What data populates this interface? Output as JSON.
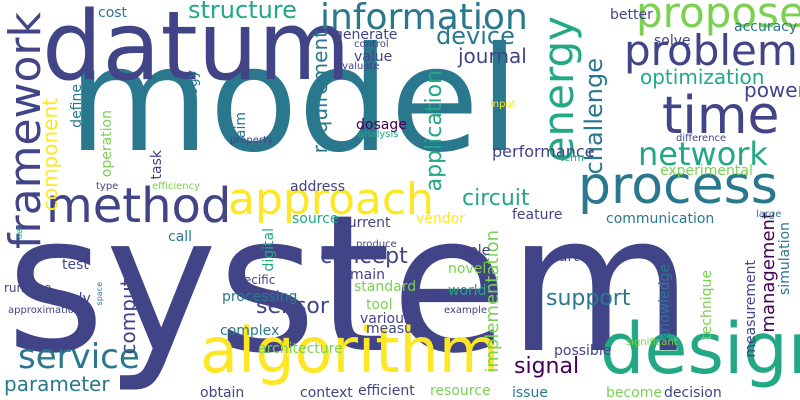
{
  "palette": {
    "background": "#ffffff",
    "indigo": "#414487",
    "teal": "#2a788e",
    "green": "#22a884",
    "lime": "#7ad151",
    "yellow": "#fde725",
    "purple": "#440154"
  },
  "words": [
    {
      "id": "system",
      "text": "system",
      "color": "#414487"
    },
    {
      "id": "model",
      "text": "model",
      "color": "#2a788e"
    },
    {
      "id": "datum",
      "text": "datum",
      "color": "#414487"
    },
    {
      "id": "design",
      "text": "design",
      "color": "#22a884"
    },
    {
      "id": "algorithm",
      "text": "algorithm",
      "color": "#fde725"
    },
    {
      "id": "process",
      "text": "process",
      "color": "#2a788e"
    },
    {
      "id": "method",
      "text": "method",
      "color": "#414487"
    },
    {
      "id": "time",
      "text": "time",
      "color": "#414487"
    },
    {
      "id": "approach",
      "text": "approach",
      "color": "#fde725"
    },
    {
      "id": "framework",
      "text": "framework",
      "color": "#414487"
    },
    {
      "id": "energy",
      "text": "energy",
      "color": "#22a884"
    },
    {
      "id": "problem",
      "text": "problem",
      "color": "#414487"
    },
    {
      "id": "propose",
      "text": "propose",
      "color": "#7ad151"
    },
    {
      "id": "information",
      "text": "information",
      "color": "#2a788e"
    },
    {
      "id": "network",
      "text": "network",
      "color": "#22a884"
    },
    {
      "id": "service",
      "text": "service",
      "color": "#2a788e"
    },
    {
      "id": "structure",
      "text": "structure",
      "color": "#22a884"
    },
    {
      "id": "component",
      "text": "component",
      "color": "#fde725"
    },
    {
      "id": "device",
      "text": "device",
      "color": "#2a788e"
    },
    {
      "id": "journal",
      "text": "journal",
      "color": "#414487"
    },
    {
      "id": "application",
      "text": "application",
      "color": "#22a884"
    },
    {
      "id": "challenge",
      "text": "challenge",
      "color": "#2a788e"
    },
    {
      "id": "requirement",
      "text": "requirement",
      "color": "#2a788e"
    },
    {
      "id": "optimization",
      "text": "optimization",
      "color": "#22a884"
    },
    {
      "id": "power",
      "text": "power",
      "color": "#414487"
    },
    {
      "id": "support",
      "text": "support",
      "color": "#2a788e"
    },
    {
      "id": "management",
      "text": "management",
      "color": "#440154"
    },
    {
      "id": "concept",
      "text": "concept",
      "color": "#414487"
    },
    {
      "id": "sensor",
      "text": "sensor",
      "color": "#414487"
    },
    {
      "id": "computer",
      "text": "computer",
      "color": "#414487"
    },
    {
      "id": "parameter",
      "text": "parameter",
      "color": "#2a788e"
    },
    {
      "id": "signal",
      "text": "signal",
      "color": "#440154"
    },
    {
      "id": "circuit",
      "text": "circuit",
      "color": "#22a884"
    },
    {
      "id": "implementation",
      "text": "implementation",
      "color": "#7ad151"
    },
    {
      "id": "performance",
      "text": "performance",
      "color": "#414487"
    },
    {
      "id": "experimental",
      "text": "experimental",
      "color": "#7ad151"
    },
    {
      "id": "measurement",
      "text": "measurement",
      "color": "#414487"
    },
    {
      "id": "simulation",
      "text": "simulation",
      "color": "#2a788e"
    },
    {
      "id": "communication",
      "text": "communication",
      "color": "#2a788e"
    },
    {
      "id": "knowledge",
      "text": "knowledge",
      "color": "#2a788e"
    },
    {
      "id": "technique",
      "text": "technique",
      "color": "#7ad151"
    },
    {
      "id": "processing",
      "text": "processing",
      "color": "#2a788e"
    },
    {
      "id": "architecture",
      "text": "architecture",
      "color": "#7ad151"
    },
    {
      "id": "possible",
      "text": "possible",
      "color": "#414487"
    },
    {
      "id": "significant",
      "text": "significant",
      "color": "#7ad151"
    },
    {
      "id": "efficient",
      "text": "efficient",
      "color": "#414487"
    },
    {
      "id": "resource",
      "text": "resource",
      "color": "#7ad151"
    },
    {
      "id": "decision",
      "text": "decision",
      "color": "#414487"
    },
    {
      "id": "context",
      "text": "context",
      "color": "#414487"
    },
    {
      "id": "obtain",
      "text": "obtain",
      "color": "#414487"
    },
    {
      "id": "become",
      "text": "become",
      "color": "#7ad151"
    },
    {
      "id": "issue",
      "text": "issue",
      "color": "#2a788e"
    },
    {
      "id": "study",
      "text": "study",
      "color": "#414487"
    },
    {
      "id": "test",
      "text": "test",
      "color": "#414487"
    },
    {
      "id": "runtime",
      "text": "runtime",
      "color": "#414487"
    },
    {
      "id": "approximation",
      "text": "approximation",
      "color": "#414487"
    },
    {
      "id": "space",
      "text": "space",
      "color": "#2a788e"
    },
    {
      "id": "tool",
      "text": "tool",
      "color": "#7ad151"
    },
    {
      "id": "measure",
      "text": "measure",
      "color": "#414487"
    },
    {
      "id": "various",
      "text": "various",
      "color": "#414487"
    },
    {
      "id": "complex",
      "text": "complex",
      "color": "#2a788e"
    },
    {
      "id": "standard",
      "text": "standard",
      "color": "#7ad151"
    },
    {
      "id": "world",
      "text": "world",
      "color": "#22a884"
    },
    {
      "id": "novel",
      "text": "novel",
      "color": "#7ad151"
    },
    {
      "id": "example",
      "text": "example",
      "color": "#414487"
    },
    {
      "id": "part",
      "text": "part",
      "color": "#414487"
    },
    {
      "id": "simple",
      "text": "simple",
      "color": "#414487"
    },
    {
      "id": "main",
      "text": "main",
      "color": "#414487"
    },
    {
      "id": "digital",
      "text": "digital",
      "color": "#22a884"
    },
    {
      "id": "specific",
      "text": "specific",
      "color": "#414487"
    },
    {
      "id": "produce",
      "text": "produce",
      "color": "#414487"
    },
    {
      "id": "call",
      "text": "call",
      "color": "#2a788e"
    },
    {
      "id": "source",
      "text": "source",
      "color": "#22a884"
    },
    {
      "id": "current",
      "text": "current",
      "color": "#414487"
    },
    {
      "id": "vendor",
      "text": "vendor",
      "color": "#fde725"
    },
    {
      "id": "feature",
      "text": "feature",
      "color": "#414487"
    },
    {
      "id": "address",
      "text": "address",
      "color": "#414487"
    },
    {
      "id": "large",
      "text": "large",
      "color": "#2a788e"
    },
    {
      "id": "dosage",
      "text": "dosage",
      "color": "#440154"
    },
    {
      "id": "analysis",
      "text": "analysis",
      "color": "#22a884"
    },
    {
      "id": "property",
      "text": "property",
      "color": "#414487"
    },
    {
      "id": "aim",
      "text": "aim",
      "color": "#2a788e"
    },
    {
      "id": "technology",
      "text": "technology",
      "color": "#2a788e"
    },
    {
      "id": "operation",
      "text": "operation",
      "color": "#7ad151"
    },
    {
      "id": "task",
      "text": "task",
      "color": "#414487"
    },
    {
      "id": "efficiency",
      "text": "efficiency",
      "color": "#7ad151"
    },
    {
      "id": "type",
      "text": "type",
      "color": "#414487"
    },
    {
      "id": "define",
      "text": "define",
      "color": "#2a788e"
    },
    {
      "id": "den",
      "text": "den",
      "color": "#22a884"
    },
    {
      "id": "cost",
      "text": "cost",
      "color": "#2a788e"
    },
    {
      "id": "generate",
      "text": "generate",
      "color": "#414487"
    },
    {
      "id": "control",
      "text": "control",
      "color": "#414487"
    },
    {
      "id": "value",
      "text": "value",
      "color": "#414487"
    },
    {
      "id": "evaluate",
      "text": "evaluate",
      "color": "#414487"
    },
    {
      "id": "input",
      "text": "input",
      "color": "#fde725"
    },
    {
      "id": "difference",
      "text": "difference",
      "color": "#414487"
    },
    {
      "id": "term",
      "text": "term",
      "color": "#22a884"
    },
    {
      "id": "solve",
      "text": "solve",
      "color": "#414487"
    },
    {
      "id": "accuracy",
      "text": "accuracy",
      "color": "#2a788e"
    },
    {
      "id": "better",
      "text": "better",
      "color": "#414487"
    }
  ]
}
